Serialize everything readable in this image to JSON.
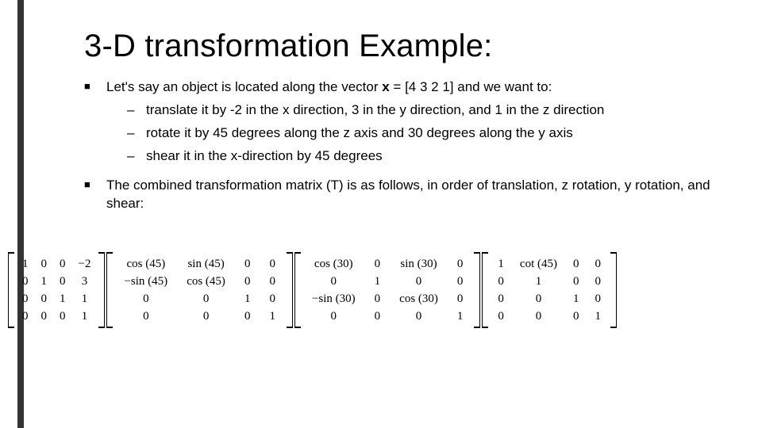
{
  "accent_color": "#333333",
  "title": "3-D transformation Example:",
  "bullets": [
    {
      "text_parts": [
        "Let's say an object is located along the vector ",
        "x",
        " = [4 3 2 1] and we want to:"
      ],
      "bold_idx": 1,
      "sub": [
        "translate it by -2 in the x direction, 3 in the y direction, and 1 in the z direction",
        "rotate it by 45 degrees along the z axis and 30 degrees along the y axis",
        "shear it in the x-direction by 45 degrees"
      ]
    },
    {
      "text_parts": [
        "The combined transformation matrix (T) is as follows, in order of translation, z rotation, y rotation, and shear:"
      ],
      "sub": []
    }
  ],
  "matrices": [
    {
      "name": "translation",
      "rows": [
        [
          "1",
          "0",
          "0",
          "−2"
        ],
        [
          "0",
          "1",
          "0",
          "3"
        ],
        [
          "0",
          "0",
          "1",
          "1"
        ],
        [
          "0",
          "0",
          "0",
          "1"
        ]
      ]
    },
    {
      "name": "z-rotation",
      "rows": [
        [
          "cos (45)",
          "sin (45)",
          "0",
          "0"
        ],
        [
          "−sin (45)",
          "cos (45)",
          "0",
          "0"
        ],
        [
          "0",
          "0",
          "1",
          "0"
        ],
        [
          "0",
          "0",
          "0",
          "1"
        ]
      ]
    },
    {
      "name": "y-rotation",
      "rows": [
        [
          "cos (30)",
          "0",
          "sin (30)",
          "0"
        ],
        [
          "0",
          "1",
          "0",
          "0"
        ],
        [
          "−sin (30)",
          "0",
          "cos (30)",
          "0"
        ],
        [
          "0",
          "0",
          "0",
          "1"
        ]
      ]
    },
    {
      "name": "shear",
      "rows": [
        [
          "1",
          "cot (45)",
          "0",
          "0"
        ],
        [
          "0",
          "1",
          "0",
          "0"
        ],
        [
          "0",
          "0",
          "1",
          "0"
        ],
        [
          "0",
          "0",
          "0",
          "1"
        ]
      ]
    }
  ]
}
